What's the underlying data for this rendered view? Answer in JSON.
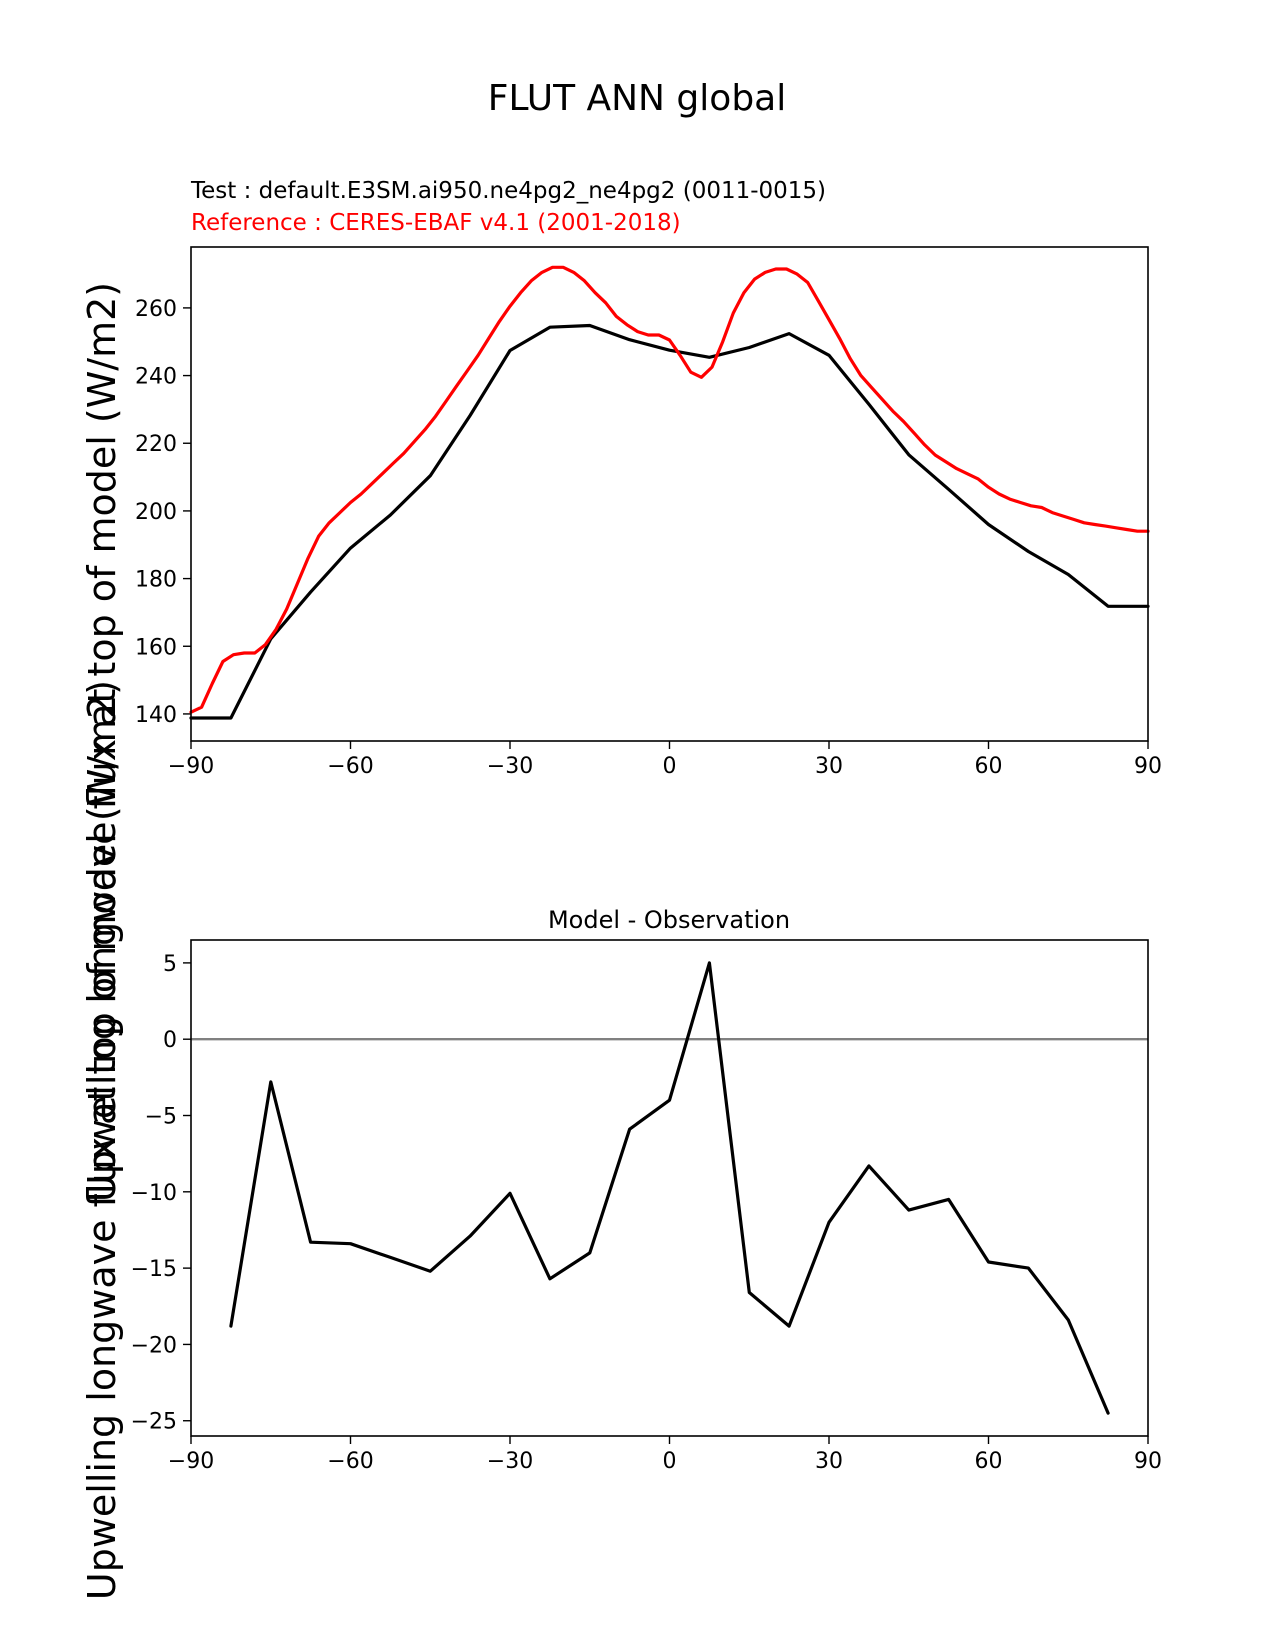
{
  "figure": {
    "suptitle": "FLUT ANN global",
    "test_label": "Test : default.E3SM.ai950.ne4pg2_ne4pg2 (0011-0015)",
    "reference_label": "Reference : CERES-EBAF v4.1 (2001-2018)",
    "ylabel": "Upwelling longwave flux at top of model (W/m2)",
    "colors": {
      "test": "#000000",
      "reference": "#ff0000",
      "zero_line": "#808080"
    }
  },
  "chart_data": [
    {
      "type": "line",
      "title": "",
      "xlabel": "",
      "ylabel": "Upwelling longwave flux at top of model (W/m2)",
      "xlim": [
        -90,
        90
      ],
      "ylim": [
        132,
        278
      ],
      "xticks": [
        -90,
        -60,
        -30,
        0,
        30,
        60,
        90
      ],
      "xtick_labels": [
        "−90",
        "−60",
        "−30",
        "0",
        "30",
        "60",
        "90"
      ],
      "yticks": [
        140,
        160,
        180,
        200,
        220,
        240,
        260
      ],
      "ytick_labels": [
        "140",
        "160",
        "180",
        "200",
        "220",
        "240",
        "260"
      ],
      "grid": false,
      "series": [
        {
          "name": "Test : default.E3SM.ai950.ne4pg2_ne4pg2 (0011-0015)",
          "color": "#000000",
          "x": [
            -90,
            -82.5,
            -75,
            -67.5,
            -60,
            -52.5,
            -45,
            -37.5,
            -30,
            -22.5,
            -15,
            -7.5,
            0,
            7.5,
            15,
            22.5,
            30,
            37.5,
            45,
            52.5,
            60,
            67.5,
            75,
            82.5,
            90
          ],
          "y": [
            138.8,
            138.8,
            162.2,
            176.0,
            189.0,
            198.8,
            210.4,
            228.2,
            247.4,
            254.3,
            254.8,
            250.6,
            247.5,
            245.4,
            248.3,
            252.4,
            246.0,
            231.5,
            216.6,
            206.4,
            196.0,
            188.0,
            181.2,
            171.8,
            171.8
          ]
        },
        {
          "name": "Reference : CERES-EBAF v4.1 (2001-2018)",
          "color": "#ff0000",
          "x": [
            -90,
            -88,
            -86,
            -84,
            -82,
            -80,
            -78,
            -76,
            -74,
            -72,
            -70,
            -68,
            -66,
            -64,
            -62,
            -60,
            -58,
            -56,
            -54,
            -52,
            -50,
            -48,
            -46,
            -44,
            -42,
            -40,
            -38,
            -36,
            -34,
            -32,
            -30,
            -28,
            -26,
            -24,
            -22,
            -20,
            -18,
            -16,
            -14,
            -12,
            -10,
            -8,
            -6,
            -4,
            -2,
            0,
            2,
            4,
            6,
            8,
            10,
            12,
            14,
            16,
            18,
            20,
            22,
            24,
            26,
            28,
            30,
            32,
            34,
            36,
            38,
            40,
            42,
            44,
            46,
            48,
            50,
            52,
            54,
            56,
            58,
            60,
            62,
            64,
            66,
            68,
            70,
            72,
            74,
            76,
            78,
            80,
            82,
            84,
            86,
            88,
            90
          ],
          "y": [
            140.5,
            142.0,
            149.0,
            155.5,
            157.5,
            158.0,
            158.0,
            160.5,
            165.0,
            171.0,
            178.5,
            186.0,
            192.5,
            196.5,
            199.5,
            202.5,
            205.0,
            208.0,
            211.0,
            214.0,
            217.0,
            220.5,
            224.0,
            228.0,
            232.5,
            237.0,
            241.5,
            246.0,
            251.0,
            256.0,
            260.5,
            264.5,
            268.0,
            270.5,
            272.0,
            272.0,
            270.5,
            268.0,
            264.5,
            261.5,
            257.5,
            255.0,
            253.0,
            252.0,
            252.0,
            250.5,
            246.0,
            241.0,
            239.5,
            242.5,
            250.0,
            258.5,
            264.5,
            268.5,
            270.5,
            271.5,
            271.5,
            270.0,
            267.5,
            262.0,
            256.5,
            251.0,
            245.0,
            240.0,
            236.5,
            233.0,
            229.5,
            226.5,
            223.0,
            219.5,
            216.5,
            214.5,
            212.5,
            211.0,
            209.5,
            207.0,
            205.0,
            203.5,
            202.5,
            201.5,
            201.0,
            199.5,
            198.5,
            197.5,
            196.5,
            196.0,
            195.5,
            195.0,
            194.5,
            194.0,
            194.0
          ]
        }
      ]
    },
    {
      "type": "line",
      "title": "Model - Observation",
      "xlabel": "",
      "ylabel": "Upwelling longwave flux at top of model (W/m2)",
      "xlim": [
        -90,
        90
      ],
      "ylim": [
        -26.0,
        6.5
      ],
      "xticks": [
        -90,
        -60,
        -30,
        0,
        30,
        60,
        90
      ],
      "xtick_labels": [
        "−90",
        "−60",
        "−30",
        "0",
        "30",
        "60",
        "90"
      ],
      "yticks": [
        -25,
        -20,
        -15,
        -10,
        -5,
        0,
        5
      ],
      "ytick_labels": [
        "−25",
        "−20",
        "−15",
        "−10",
        "−5",
        "0",
        "5"
      ],
      "grid": false,
      "zero_line": true,
      "series": [
        {
          "name": "Model - Observation",
          "color": "#000000",
          "x": [
            -82.5,
            -75,
            -67.5,
            -60,
            -52.5,
            -45,
            -37.5,
            -30,
            -22.5,
            -15,
            -7.5,
            0,
            7.5,
            15,
            22.5,
            30,
            37.5,
            45,
            52.5,
            60,
            67.5,
            75,
            82.5
          ],
          "y": [
            -18.8,
            -2.8,
            -13.3,
            -13.4,
            -14.3,
            -15.2,
            -12.9,
            -10.1,
            -15.7,
            -14.0,
            -5.9,
            -4.0,
            5.0,
            -16.6,
            -18.8,
            -12.0,
            -8.3,
            -11.2,
            -10.5,
            -14.6,
            -15.0,
            -18.4,
            -24.5
          ]
        }
      ]
    }
  ]
}
